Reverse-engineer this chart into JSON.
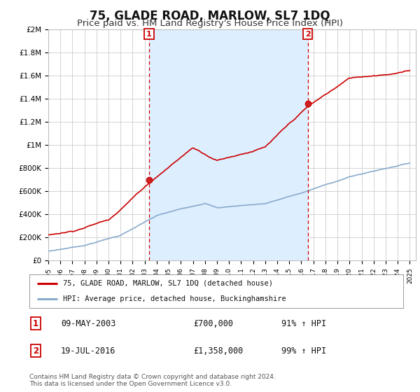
{
  "title": "75, GLADE ROAD, MARLOW, SL7 1DQ",
  "subtitle": "Price paid vs. HM Land Registry's House Price Index (HPI)",
  "title_fontsize": 12,
  "subtitle_fontsize": 9.5,
  "background_color": "#ffffff",
  "plot_bg_color": "#ffffff",
  "grid_color": "#cccccc",
  "shade_color": "#ddeeff",
  "red_line_color": "#cc0000",
  "blue_line_color": "#88aacc",
  "dashed_line_color": "#cc0000",
  "annotation_box_color": "#cc0000",
  "ylim": [
    0,
    2000000
  ],
  "yticks": [
    0,
    200000,
    400000,
    600000,
    800000,
    1000000,
    1200000,
    1400000,
    1600000,
    1800000,
    2000000
  ],
  "ytick_labels": [
    "£0",
    "£200K",
    "£400K",
    "£600K",
    "£800K",
    "£1M",
    "£1.2M",
    "£1.4M",
    "£1.6M",
    "£1.8M",
    "£2M"
  ],
  "sale1_date": 2003.36,
  "sale1_price": 700000,
  "sale1_label": "1",
  "sale2_date": 2016.54,
  "sale2_price": 1358000,
  "sale2_label": "2",
  "legend_line1": "75, GLADE ROAD, MARLOW, SL7 1DQ (detached house)",
  "legend_line2": "HPI: Average price, detached house, Buckinghamshire",
  "table_row1": [
    "1",
    "09-MAY-2003",
    "£700,000",
    "91% ↑ HPI"
  ],
  "table_row2": [
    "2",
    "19-JUL-2016",
    "£1,358,000",
    "99% ↑ HPI"
  ],
  "footer_text": "Contains HM Land Registry data © Crown copyright and database right 2024.\nThis data is licensed under the Open Government Licence v3.0.",
  "xmin": 1995,
  "xmax": 2025.5
}
